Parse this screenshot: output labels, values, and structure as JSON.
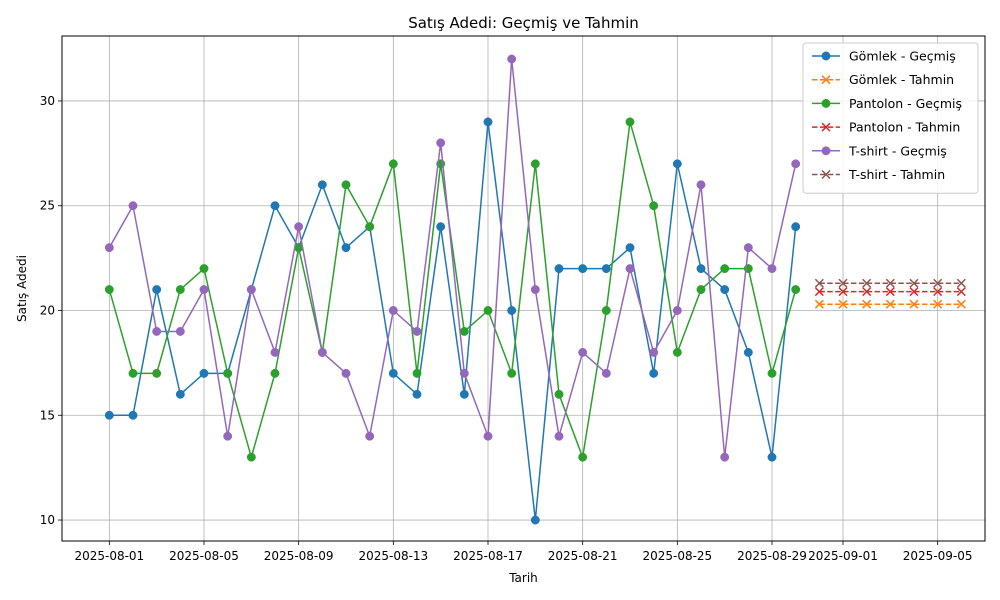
{
  "chart_data": {
    "type": "line",
    "title": "Satış Adedi: Geçmiş ve Tahmin",
    "xlabel": "Tarih",
    "ylabel": "Satış Adedi",
    "x_is_date": true,
    "ylim": [
      9,
      33.1
    ],
    "xlim": [
      "2025-07-30",
      "2025-09-07"
    ],
    "yticks": [
      10,
      15,
      20,
      25,
      30
    ],
    "xticks": [
      "2025-08-01",
      "2025-08-05",
      "2025-08-09",
      "2025-08-13",
      "2025-08-17",
      "2025-08-21",
      "2025-08-25",
      "2025-08-29",
      "2025-09-01",
      "2025-09-05"
    ],
    "grid": true,
    "legend_position": "top-right",
    "series": [
      {
        "name": "Gömlek - Geçmiş",
        "color": "#1f77b4",
        "linestyle": "solid",
        "marker": "circle",
        "x_start": "2025-08-01",
        "values": [
          15,
          15,
          21,
          16,
          17,
          17,
          21,
          25,
          23,
          26,
          23,
          24,
          17,
          16,
          24,
          16,
          29,
          20,
          10,
          22,
          22,
          22,
          23,
          17,
          27,
          22,
          21,
          18,
          13,
          24
        ]
      },
      {
        "name": "Gömlek - Tahmin",
        "color": "#ff7f0e",
        "linestyle": "dashed",
        "marker": "x",
        "x_start": "2025-08-31",
        "values": [
          20.3,
          20.3,
          20.3,
          20.3,
          20.3,
          20.3,
          20.3
        ]
      },
      {
        "name": "Pantolon - Geçmiş",
        "color": "#2ca02c",
        "linestyle": "solid",
        "marker": "circle",
        "x_start": "2025-08-01",
        "values": [
          21,
          17,
          17,
          21,
          22,
          17,
          13,
          17,
          23,
          18,
          26,
          24,
          27,
          17,
          27,
          19,
          20,
          17,
          27,
          16,
          13,
          20,
          29,
          25,
          18,
          21,
          22,
          22,
          17,
          21
        ]
      },
      {
        "name": "Pantolon - Tahmin",
        "color": "#d62728",
        "linestyle": "dashed",
        "marker": "x",
        "x_start": "2025-08-31",
        "values": [
          20.9,
          20.9,
          20.9,
          20.9,
          20.9,
          20.9,
          20.9
        ]
      },
      {
        "name": "T-shirt - Geçmiş",
        "color": "#9467bd",
        "linestyle": "solid",
        "marker": "circle",
        "x_start": "2025-08-01",
        "values": [
          23,
          25,
          19,
          19,
          21,
          14,
          21,
          18,
          24,
          18,
          17,
          14,
          20,
          19,
          28,
          17,
          14,
          32,
          21,
          14,
          18,
          17,
          22,
          18,
          20,
          26,
          13,
          23,
          22,
          27
        ]
      },
      {
        "name": "T-shirt - Tahmin",
        "color": "#8c564b",
        "linestyle": "dashed",
        "marker": "x",
        "x_start": "2025-08-31",
        "values": [
          21.3,
          21.3,
          21.3,
          21.3,
          21.3,
          21.3,
          21.3
        ]
      }
    ]
  }
}
